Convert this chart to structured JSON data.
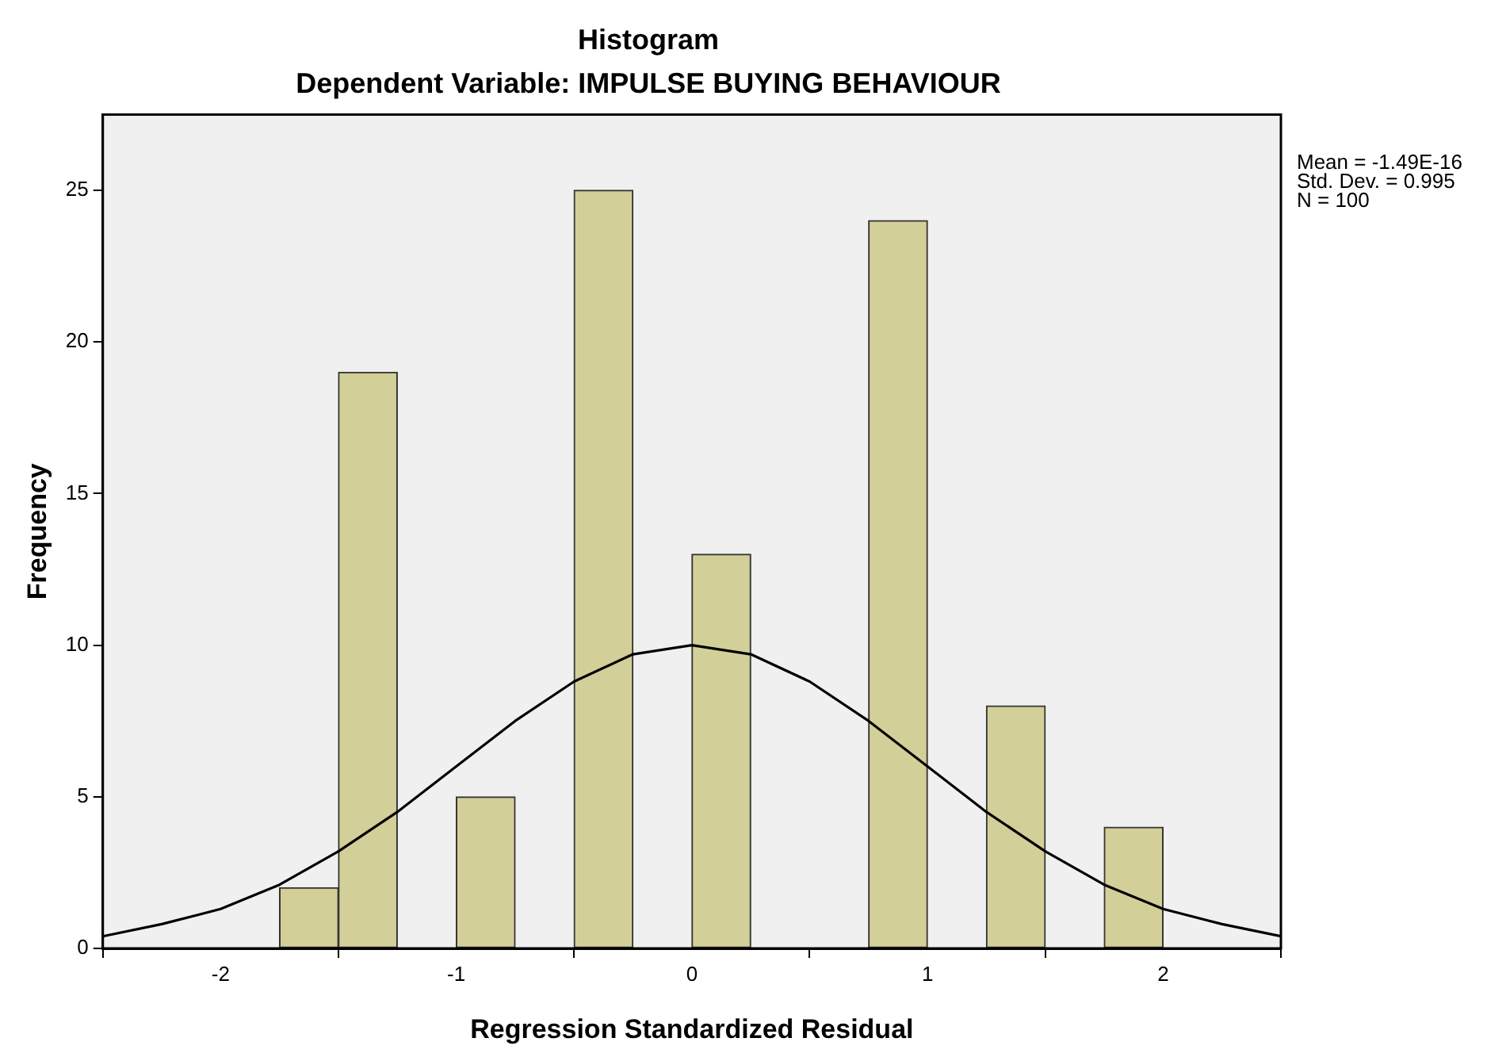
{
  "chart_data": {
    "type": "histogram",
    "title": "Histogram",
    "subtitle": "Dependent Variable: IMPULSE BUYING BEHAVIOUR",
    "xlabel": "Regression Standardized Residual",
    "ylabel": "Frequency",
    "annotations": [
      "Mean = -1.49E-16\nStd. Dev. = 0.995\nN = 100"
    ],
    "series": [
      {
        "type": "histogram",
        "color": "#d3cf98",
        "bins": [
          -1.75,
          -1.5,
          -1.25,
          -1,
          -0.75,
          -0.5,
          -0.25,
          0,
          0.25,
          0.5,
          0.75,
          1,
          1.25,
          1.5,
          1.75,
          2
        ],
        "values": [
          2,
          19,
          0,
          5,
          0,
          25,
          0,
          13,
          0,
          0,
          24,
          0,
          8,
          0,
          4
        ]
      },
      {
        "type": "line",
        "color": "#000000",
        "x": [
          -2.5,
          -2.25,
          -2,
          -1.75,
          -1.5,
          -1.25,
          -1,
          -0.75,
          -0.5,
          -0.25,
          0,
          0.25,
          0.5,
          0.75,
          1,
          1.25,
          1.5,
          1.75,
          2,
          2.25,
          2.5
        ],
        "values": [
          0.4,
          0.8,
          1.3,
          2.1,
          3.2,
          4.5,
          6,
          7.5,
          8.8,
          9.7,
          10,
          9.7,
          8.8,
          7.5,
          6,
          4.5,
          3.2,
          2.1,
          1.3,
          0.8,
          0.4
        ]
      }
    ],
    "xlim": [
      -2.5,
      2.5
    ],
    "xticks": [
      -2,
      -1,
      0,
      1,
      2
    ],
    "ylim": [
      0,
      27.5
    ],
    "yticks": [
      0,
      5,
      10,
      15,
      20,
      25
    ],
    "legend": false,
    "marker": "none"
  }
}
